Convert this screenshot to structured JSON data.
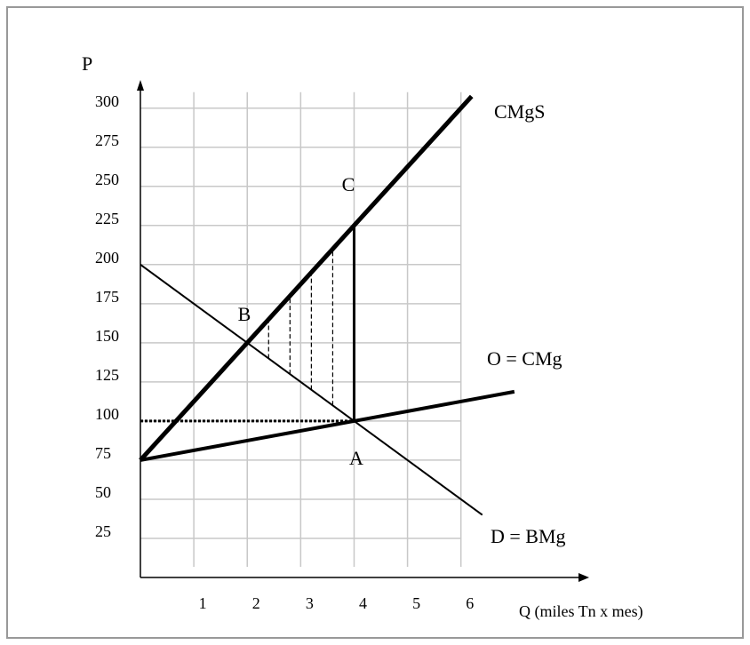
{
  "chart_data": {
    "type": "line",
    "y_label": "P",
    "x_label": "Q (miles Tn x mes)",
    "xlim": [
      0,
      8.4
    ],
    "ylim": [
      0,
      318
    ],
    "xticks": [
      1,
      2,
      3,
      4,
      5,
      6
    ],
    "yticks": [
      25,
      50,
      75,
      100,
      125,
      150,
      175,
      200,
      225,
      250,
      275,
      300
    ],
    "grid": true,
    "color": "#000000",
    "series": [
      {
        "name": "CMgS",
        "x": [
          0,
          6.2
        ],
        "values": [
          75,
          307.5
        ]
      },
      {
        "name": "O = CMg",
        "x": [
          0,
          7
        ],
        "values": [
          75,
          118.75
        ]
      },
      {
        "name": "D = BMg",
        "x": [
          0,
          6.4
        ],
        "values": [
          200,
          40
        ]
      }
    ],
    "segments": [
      {
        "style": "solid",
        "x": [
          4,
          4
        ],
        "values": [
          100,
          225
        ]
      },
      {
        "style": "dotted",
        "x": [
          0,
          4
        ],
        "values": [
          100,
          100
        ]
      },
      {
        "style": "dashed",
        "x": [
          2.4,
          2.4
        ],
        "values": [
          140,
          165
        ]
      },
      {
        "style": "dashed",
        "x": [
          2.8,
          2.8
        ],
        "values": [
          130,
          180
        ]
      },
      {
        "style": "dashed",
        "x": [
          3.2,
          3.2
        ],
        "values": [
          120,
          195
        ]
      },
      {
        "style": "dashed",
        "x": [
          3.6,
          3.6
        ],
        "values": [
          110,
          210
        ]
      }
    ],
    "annotations": [
      {
        "text": "A"
      },
      {
        "text": "B"
      },
      {
        "text": "C"
      }
    ]
  }
}
